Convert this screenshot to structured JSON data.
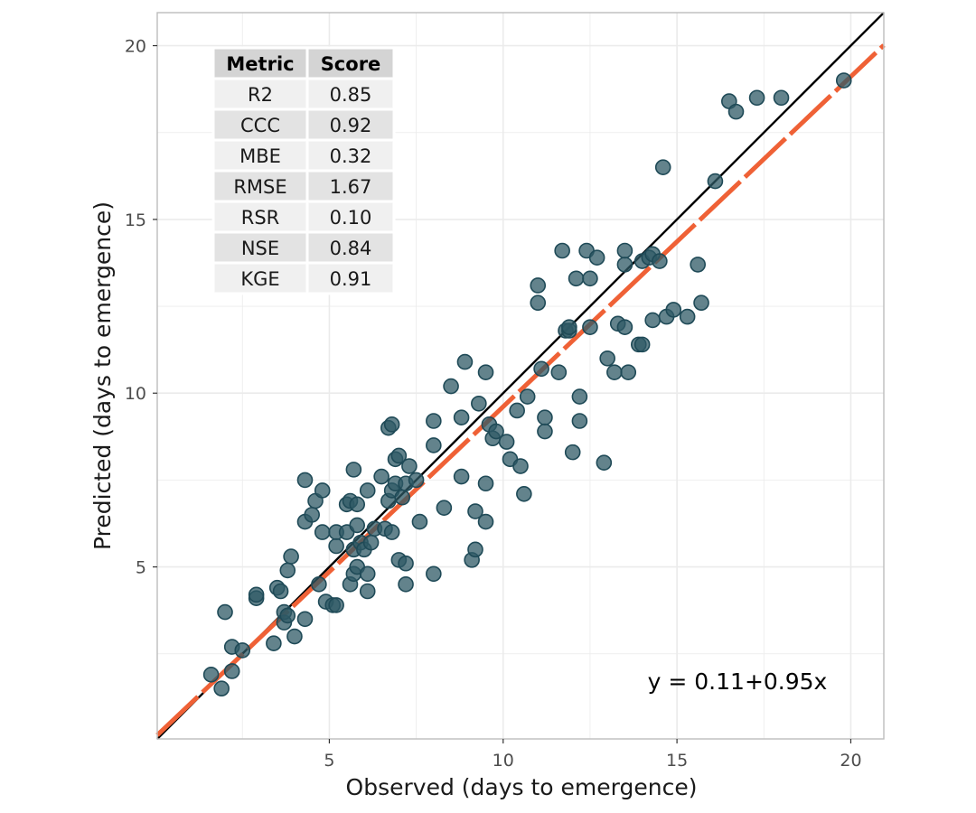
{
  "chart_data": {
    "type": "scatter",
    "xlabel": "Observed (days to emergence)",
    "ylabel": "Predicted (days to emergence)",
    "xlim": [
      0.05,
      20.95
    ],
    "ylim": [
      0.05,
      20.95
    ],
    "x_ticks": [
      5,
      10,
      15,
      20
    ],
    "y_ticks": [
      5,
      10,
      15,
      20
    ],
    "x_tick_labels": [
      "5",
      "10",
      "15",
      "20"
    ],
    "y_tick_labels": [
      "5",
      "10",
      "15",
      "20"
    ],
    "grid": true,
    "colors": {
      "points": "#2f5966",
      "points_stroke": "#1f4a57",
      "identity_line": "#000000",
      "fit_line": "#ef6136",
      "grid": "#ebebeb",
      "panel_border": "#bdbdbd"
    },
    "identity_line": {
      "intercept": 0,
      "slope": 1
    },
    "fit_line": {
      "intercept": 0.11,
      "slope": 0.95,
      "style": "dashed"
    },
    "equation_label": "y = 0.11+0.95x",
    "metrics_table": {
      "headers": [
        "Metric",
        "Score"
      ],
      "rows": [
        [
          "R2",
          "0.85"
        ],
        [
          "CCC",
          "0.92"
        ],
        [
          "MBE",
          "0.32"
        ],
        [
          "RMSE",
          "1.67"
        ],
        [
          "RSR",
          "0.10"
        ],
        [
          "NSE",
          "0.84"
        ],
        [
          "KGE",
          "0.91"
        ]
      ]
    },
    "points": [
      [
        1.6,
        1.9
      ],
      [
        1.9,
        1.5
      ],
      [
        2.0,
        3.7
      ],
      [
        2.2,
        2.0
      ],
      [
        2.2,
        2.7
      ],
      [
        2.5,
        2.6
      ],
      [
        2.9,
        4.1
      ],
      [
        2.9,
        4.2
      ],
      [
        3.4,
        2.8
      ],
      [
        3.5,
        4.4
      ],
      [
        3.6,
        4.3
      ],
      [
        3.7,
        3.4
      ],
      [
        3.7,
        3.7
      ],
      [
        3.8,
        3.6
      ],
      [
        3.8,
        4.9
      ],
      [
        3.9,
        5.3
      ],
      [
        4.0,
        3.0
      ],
      [
        4.3,
        3.5
      ],
      [
        4.3,
        6.3
      ],
      [
        4.3,
        7.5
      ],
      [
        4.5,
        6.5
      ],
      [
        4.6,
        6.9
      ],
      [
        4.7,
        4.5
      ],
      [
        4.8,
        6.0
      ],
      [
        4.8,
        7.2
      ],
      [
        4.9,
        4.0
      ],
      [
        5.1,
        3.9
      ],
      [
        5.2,
        3.9
      ],
      [
        5.2,
        5.6
      ],
      [
        5.2,
        6.0
      ],
      [
        5.5,
        6.0
      ],
      [
        5.5,
        6.8
      ],
      [
        5.6,
        4.5
      ],
      [
        5.6,
        6.9
      ],
      [
        5.7,
        4.8
      ],
      [
        5.7,
        5.5
      ],
      [
        5.7,
        7.8
      ],
      [
        5.8,
        5.0
      ],
      [
        5.8,
        6.2
      ],
      [
        5.8,
        6.8
      ],
      [
        5.9,
        5.7
      ],
      [
        6.0,
        5.5
      ],
      [
        6.1,
        4.3
      ],
      [
        6.1,
        4.8
      ],
      [
        6.1,
        7.2
      ],
      [
        6.2,
        5.7
      ],
      [
        6.3,
        6.1
      ],
      [
        6.5,
        7.6
      ],
      [
        6.6,
        6.1
      ],
      [
        6.7,
        6.9
      ],
      [
        6.7,
        9.0
      ],
      [
        6.8,
        6.0
      ],
      [
        6.8,
        7.2
      ],
      [
        6.8,
        9.1
      ],
      [
        6.9,
        7.4
      ],
      [
        6.9,
        8.1
      ],
      [
        7.0,
        5.2
      ],
      [
        7.0,
        8.2
      ],
      [
        7.1,
        7.0
      ],
      [
        7.2,
        4.5
      ],
      [
        7.2,
        5.1
      ],
      [
        7.2,
        7.4
      ],
      [
        7.3,
        7.9
      ],
      [
        7.5,
        7.5
      ],
      [
        7.6,
        6.3
      ],
      [
        8.0,
        4.8
      ],
      [
        8.0,
        8.5
      ],
      [
        8.0,
        9.2
      ],
      [
        8.3,
        6.7
      ],
      [
        8.5,
        10.2
      ],
      [
        8.8,
        7.6
      ],
      [
        8.8,
        9.3
      ],
      [
        8.9,
        10.9
      ],
      [
        9.1,
        5.2
      ],
      [
        9.2,
        5.5
      ],
      [
        9.2,
        6.6
      ],
      [
        9.3,
        9.7
      ],
      [
        9.5,
        6.3
      ],
      [
        9.5,
        7.4
      ],
      [
        9.5,
        10.6
      ],
      [
        9.6,
        9.1
      ],
      [
        9.7,
        8.7
      ],
      [
        9.8,
        8.9
      ],
      [
        10.1,
        8.6
      ],
      [
        10.2,
        8.1
      ],
      [
        10.4,
        9.5
      ],
      [
        10.5,
        7.9
      ],
      [
        10.6,
        7.1
      ],
      [
        10.7,
        9.9
      ],
      [
        11.0,
        12.6
      ],
      [
        11.0,
        13.1
      ],
      [
        11.1,
        10.7
      ],
      [
        11.2,
        8.9
      ],
      [
        11.2,
        9.3
      ],
      [
        11.6,
        10.6
      ],
      [
        11.7,
        14.1
      ],
      [
        11.8,
        11.8
      ],
      [
        11.9,
        11.8
      ],
      [
        11.9,
        11.9
      ],
      [
        12.0,
        8.3
      ],
      [
        12.1,
        13.3
      ],
      [
        12.2,
        9.2
      ],
      [
        12.2,
        9.9
      ],
      [
        12.4,
        14.1
      ],
      [
        12.5,
        11.9
      ],
      [
        12.5,
        13.3
      ],
      [
        12.7,
        13.9
      ],
      [
        12.9,
        8.0
      ],
      [
        13.0,
        11.0
      ],
      [
        13.2,
        10.6
      ],
      [
        13.3,
        12.0
      ],
      [
        13.5,
        11.9
      ],
      [
        13.5,
        13.7
      ],
      [
        13.5,
        14.1
      ],
      [
        13.6,
        10.6
      ],
      [
        13.9,
        11.4
      ],
      [
        14.0,
        11.4
      ],
      [
        14.0,
        13.8
      ],
      [
        14.2,
        13.9
      ],
      [
        14.3,
        12.1
      ],
      [
        14.3,
        14.0
      ],
      [
        14.5,
        13.8
      ],
      [
        14.6,
        16.5
      ],
      [
        14.7,
        12.2
      ],
      [
        14.9,
        12.4
      ],
      [
        15.3,
        12.2
      ],
      [
        15.6,
        13.7
      ],
      [
        15.7,
        12.6
      ],
      [
        16.1,
        16.1
      ],
      [
        16.5,
        18.4
      ],
      [
        16.7,
        18.1
      ],
      [
        17.3,
        18.5
      ],
      [
        18.0,
        18.5
      ],
      [
        19.8,
        19.0
      ]
    ]
  }
}
